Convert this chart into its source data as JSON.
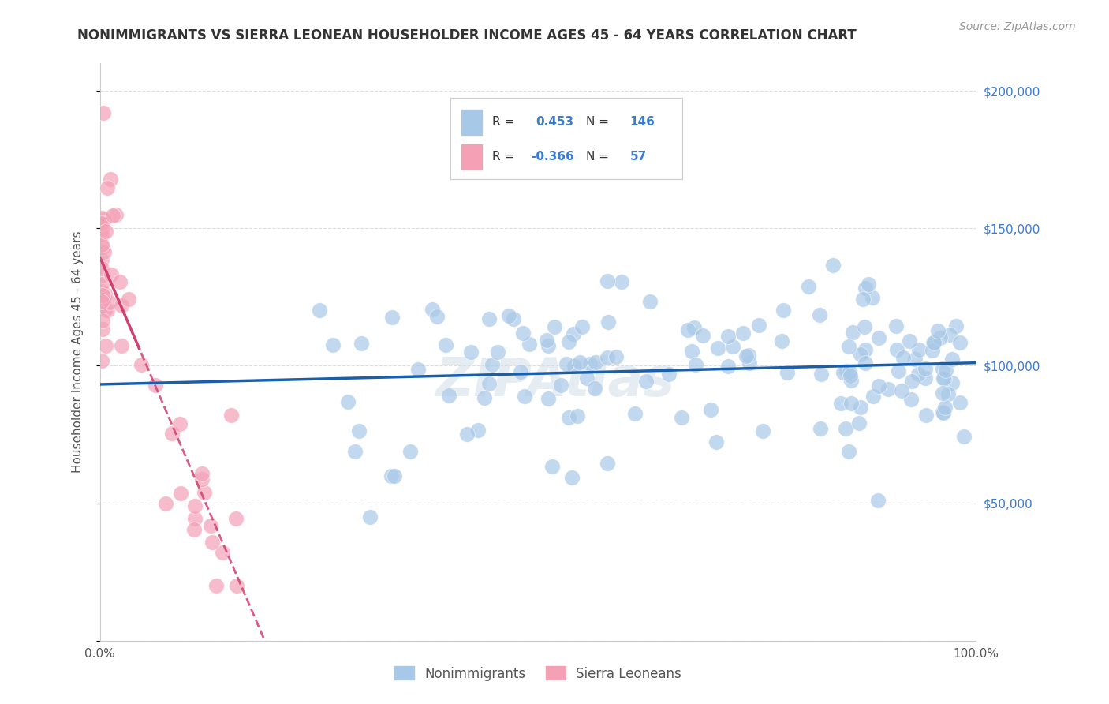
{
  "title": "NONIMMIGRANTS VS SIERRA LEONEAN HOUSEHOLDER INCOME AGES 45 - 64 YEARS CORRELATION CHART",
  "source": "Source: ZipAtlas.com",
  "ylabel": "Householder Income Ages 45 - 64 years",
  "r_blue": 0.453,
  "n_blue": 146,
  "r_pink": -0.366,
  "n_pink": 57,
  "xlim": [
    0,
    1.0
  ],
  "ylim": [
    0,
    210000
  ],
  "blue_color": "#a8c8e8",
  "pink_color": "#f4a0b5",
  "line_blue": "#1a5faa",
  "line_pink": "#d04070",
  "background_color": "#ffffff",
  "grid_color": "#dddddd",
  "right_label_color": "#3a7bd5",
  "title_color": "#333333",
  "source_color": "#999999"
}
